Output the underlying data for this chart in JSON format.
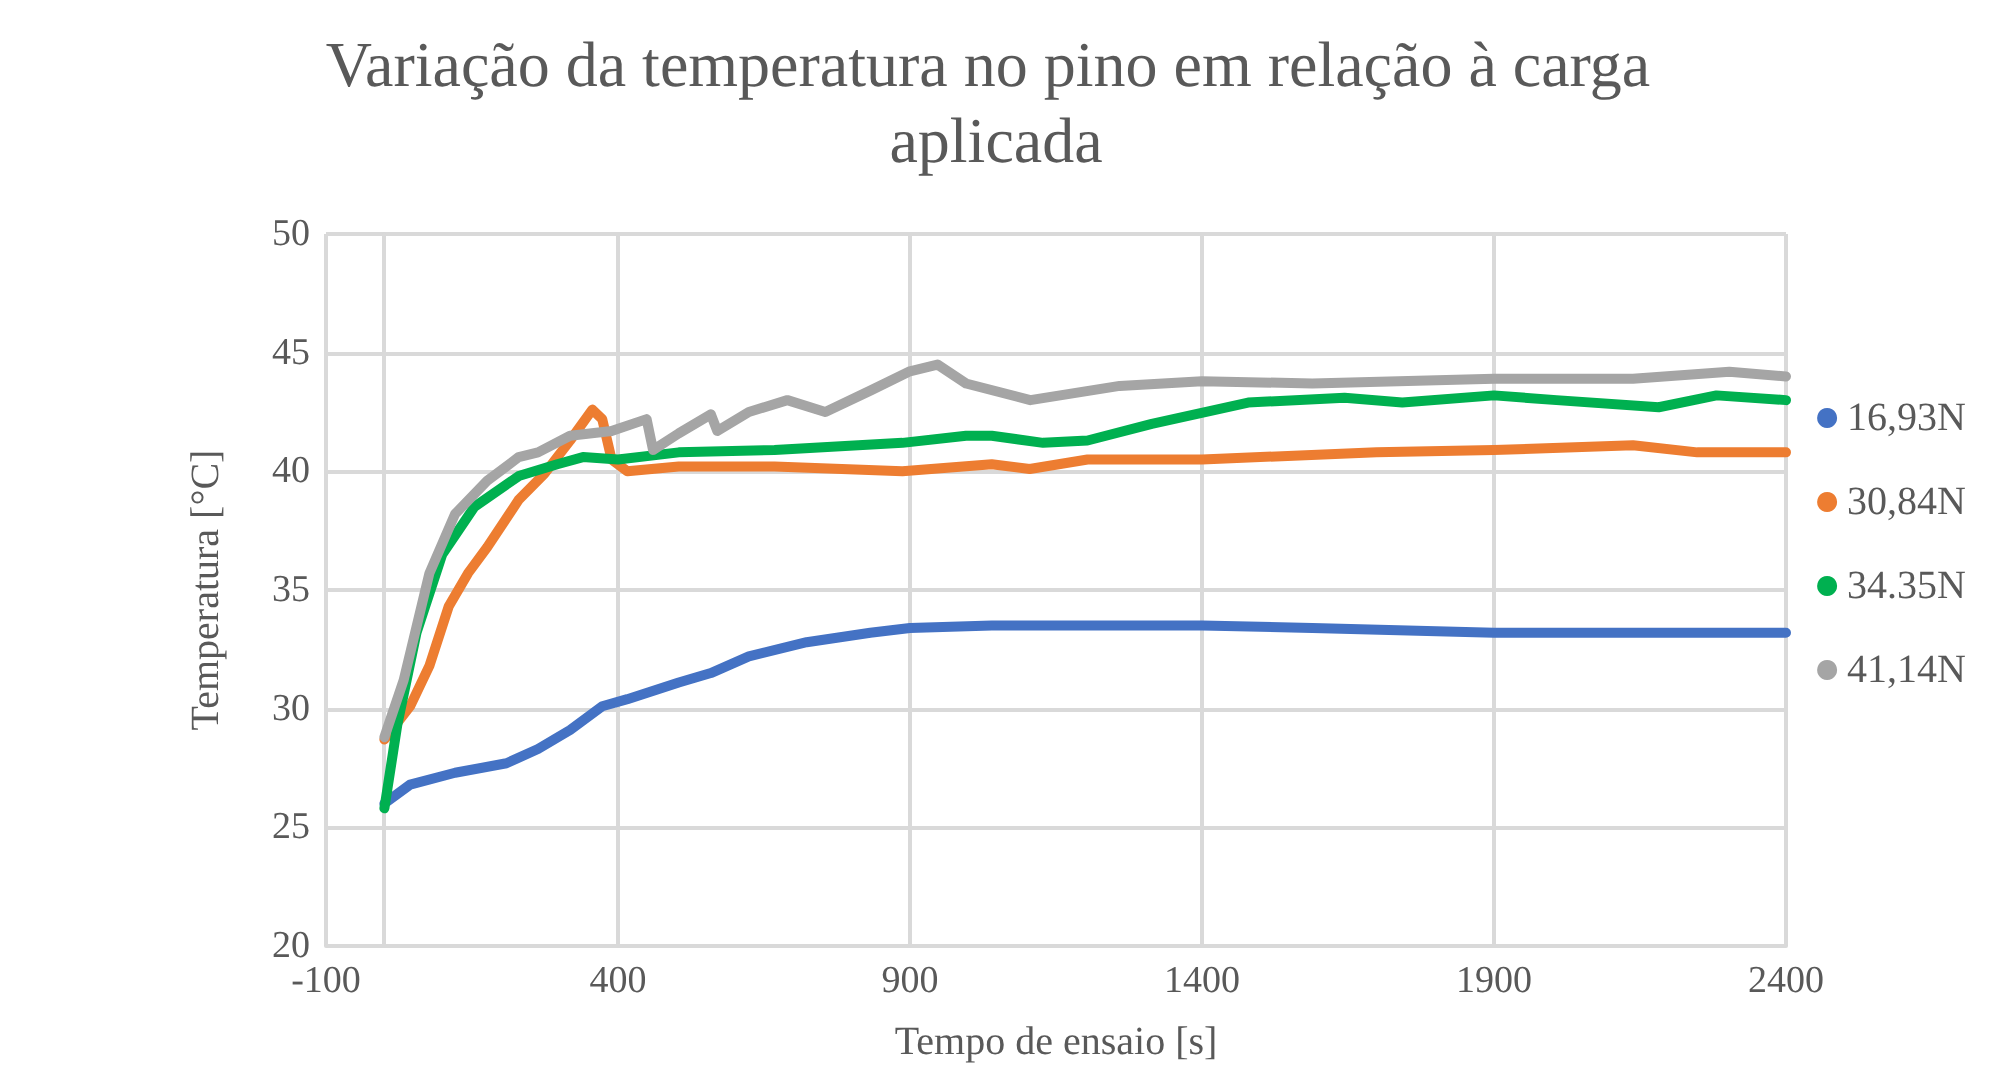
{
  "chart_data": {
    "type": "line",
    "title": "Variação da temperatura no pino em relação à carga aplicada",
    "xlabel": "Tempo de ensaio [s]",
    "ylabel": "Temperatura [°C]",
    "xlim": [
      -100,
      2400
    ],
    "xticks": [
      -100,
      400,
      900,
      1400,
      1900,
      2400
    ],
    "ylim": [
      20,
      50
    ],
    "yticks": [
      20,
      25,
      30,
      35,
      40,
      45,
      50
    ],
    "grid": true,
    "legend": "right",
    "marker": "none",
    "line_style": "solid",
    "series": [
      {
        "name": "16,93N",
        "color": "#4472c4",
        "x": [
          0,
          44,
          121,
          209,
          263,
          318,
          373,
          416,
          504,
          559,
          624,
          723,
          832,
          900,
          1040,
          1200,
          1400,
          1589,
          1900,
          2083,
          2400
        ],
        "values": [
          26.0,
          26.8,
          27.3,
          27.7,
          28.3,
          29.1,
          30.1,
          30.4,
          31.1,
          31.5,
          32.2,
          32.8,
          33.2,
          33.4,
          33.5,
          33.5,
          33.5,
          33.4,
          33.2,
          33.2,
          33.2
        ]
      },
      {
        "name": "30,84N",
        "color": "#ed7d31",
        "x": [
          0,
          44,
          77,
          110,
          143,
          176,
          230,
          274,
          318,
          356,
          373,
          389,
          416,
          504,
          668,
          887,
          1040,
          1105,
          1204,
          1400,
          1699,
          1900,
          2138,
          2248,
          2400
        ],
        "values": [
          28.7,
          30.1,
          31.8,
          34.3,
          35.7,
          36.8,
          38.8,
          39.9,
          41.3,
          42.6,
          42.2,
          40.5,
          40.0,
          40.2,
          40.2,
          40.0,
          40.3,
          40.1,
          40.5,
          40.5,
          40.8,
          40.9,
          41.1,
          40.8,
          40.8
        ]
      },
      {
        "name": "34.35N",
        "color": "#00b050",
        "x": [
          0,
          22,
          55,
          99,
          154,
          230,
          296,
          340,
          400,
          504,
          668,
          887,
          996,
          1040,
          1128,
          1204,
          1314,
          1479,
          1644,
          1743,
          1900,
          2007,
          2182,
          2281,
          2400
        ],
        "values": [
          25.8,
          29.3,
          33.2,
          36.5,
          38.5,
          39.8,
          40.3,
          40.6,
          40.5,
          40.8,
          40.9,
          41.2,
          41.5,
          41.5,
          41.2,
          41.3,
          42.0,
          42.9,
          43.1,
          42.9,
          43.2,
          43.0,
          42.7,
          43.2,
          43.0
        ]
      },
      {
        "name": "41,14N",
        "color": "#a5a5a5",
        "x": [
          0,
          33,
          77,
          121,
          176,
          230,
          263,
          318,
          389,
          449,
          460,
          504,
          559,
          570,
          624,
          690,
          755,
          832,
          898,
          947,
          996,
          1106,
          1259,
          1400,
          1589,
          1900,
          2138,
          2303,
          2400
        ],
        "values": [
          28.8,
          31.2,
          35.7,
          38.2,
          39.6,
          40.6,
          40.8,
          41.5,
          41.7,
          42.2,
          40.9,
          41.6,
          42.4,
          41.7,
          42.5,
          43.0,
          42.5,
          43.4,
          44.2,
          44.5,
          43.7,
          43.0,
          43.6,
          43.8,
          43.7,
          43.9,
          43.9,
          44.2,
          44.0
        ]
      }
    ]
  }
}
